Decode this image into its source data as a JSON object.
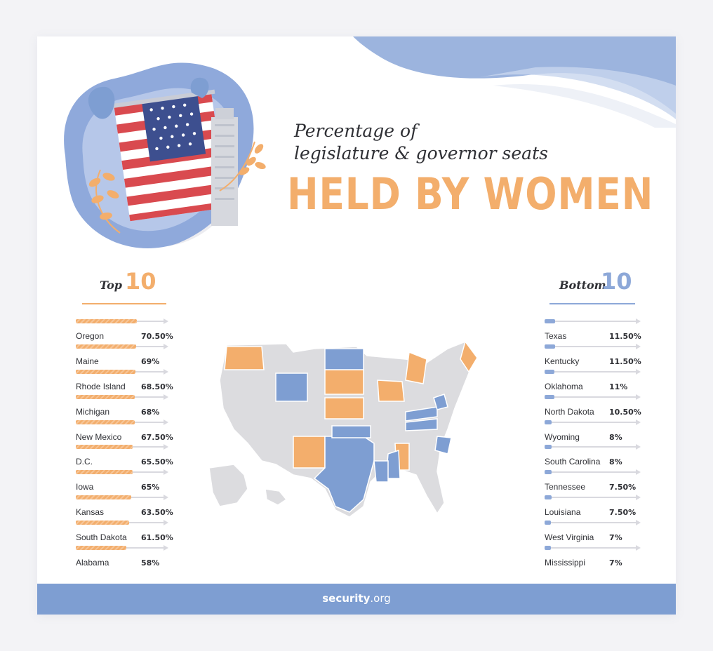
{
  "title": {
    "line1": "Percentage of",
    "line2": "legislature & governor seats",
    "main": "HELD BY WOMEN"
  },
  "top_header": {
    "word": "Top",
    "number": "10"
  },
  "bottom_header": {
    "word": "Bottom",
    "number": "10"
  },
  "footer": {
    "brand": "security",
    "domain": ".org"
  },
  "colors": {
    "accent_orange": "#f3ae6c",
    "accent_blue": "#7e9ed2",
    "map_gray": "#dcdcdf"
  },
  "icons": [
    "american-flag-icon",
    "leaf-icon",
    "us-map-icon"
  ],
  "chart_data": [
    {
      "type": "bar",
      "orientation": "horizontal",
      "title": "Top 10",
      "categories": [
        "Oregon",
        "Maine",
        "Rhode Island",
        "Michigan",
        "New Mexico",
        "D.C.",
        "Iowa",
        "Kansas",
        "South Dakota",
        "Alabama"
      ],
      "values": [
        70.5,
        69,
        68.5,
        68,
        67.5,
        65.5,
        65,
        63.5,
        61.5,
        58
      ],
      "labels": [
        "70.50%",
        "69%",
        "68.50%",
        "68%",
        "67.50%",
        "65.50%",
        "65%",
        "63.50%",
        "61.50%",
        "58%"
      ],
      "xlim": [
        0,
        100
      ],
      "color": "#f3ae6c"
    },
    {
      "type": "bar",
      "orientation": "horizontal",
      "title": "Bottom 10",
      "categories": [
        "Texas",
        "Kentucky",
        "Oklahoma",
        "North Dakota",
        "Wyoming",
        "South Carolina",
        "Tennessee",
        "Louisiana",
        "West Virginia",
        "Mississippi"
      ],
      "values": [
        11.5,
        11.5,
        11,
        10.5,
        8,
        8,
        7.5,
        7.5,
        7,
        7
      ],
      "labels": [
        "11.50%",
        "11.50%",
        "11%",
        "10.50%",
        "8%",
        "8%",
        "7.50%",
        "7.50%",
        "7%",
        "7%"
      ],
      "xlim": [
        0,
        100
      ],
      "color": "#8da8d8"
    }
  ]
}
